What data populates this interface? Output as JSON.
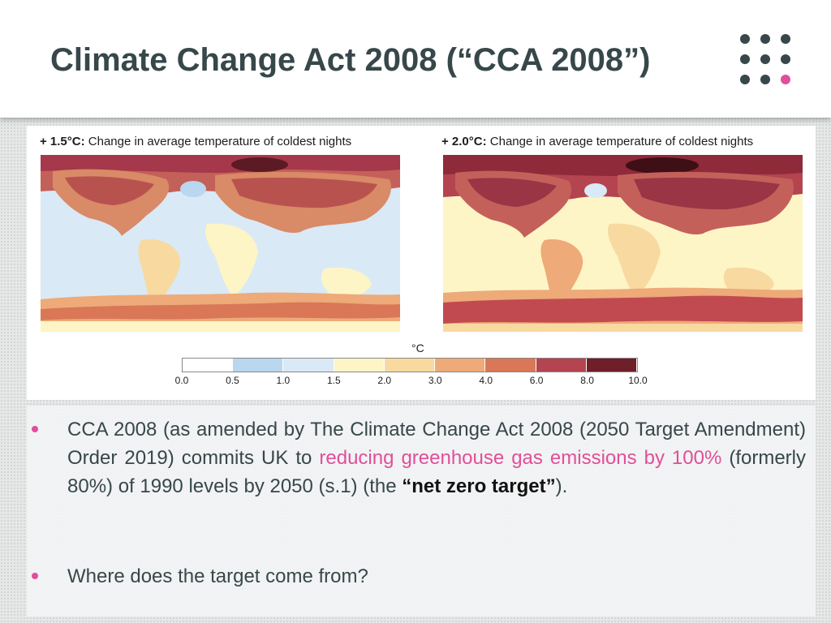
{
  "slide": {
    "title": "Climate Change Act 2008 (“CCA 2008”)"
  },
  "figure": {
    "left_map": {
      "title_prefix": "+ 1.5°C:",
      "title_text": " Change in average temperature of coldest nights"
    },
    "right_map": {
      "title_prefix": "+ 2.0°C:",
      "title_text": " Change in average temperature of coldest nights"
    },
    "colorbar": {
      "unit": "°C",
      "ticks": [
        "0.0",
        "0.5",
        "1.0",
        "1.5",
        "2.0",
        "3.0",
        "4.0",
        "6.0",
        "8.0",
        "10.0"
      ],
      "colors": [
        "#ffffff",
        "#b9d7ee",
        "#d9e9f6",
        "#fdf5c6",
        "#f8d9a0",
        "#eeaa78",
        "#d97757",
        "#b34450",
        "#6e1f2a"
      ]
    }
  },
  "bullets": [
    {
      "part1": "CCA 2008 (as amended by The Climate Change Act 2008 (2050 Target Amendment) Order 2019) commits UK to ",
      "highlight": "reducing greenhouse gas emissions by 100%",
      "part2": " (formerly 80%) of 1990 levels by 2050 (s.1) (the ",
      "strong": "“net zero target”",
      "part3": ")."
    },
    {
      "text": "Where does the target come from?"
    }
  ],
  "colors": {
    "title": "#37474a",
    "accent_pink": "#e04f99",
    "logo_dark": "#37474a"
  }
}
